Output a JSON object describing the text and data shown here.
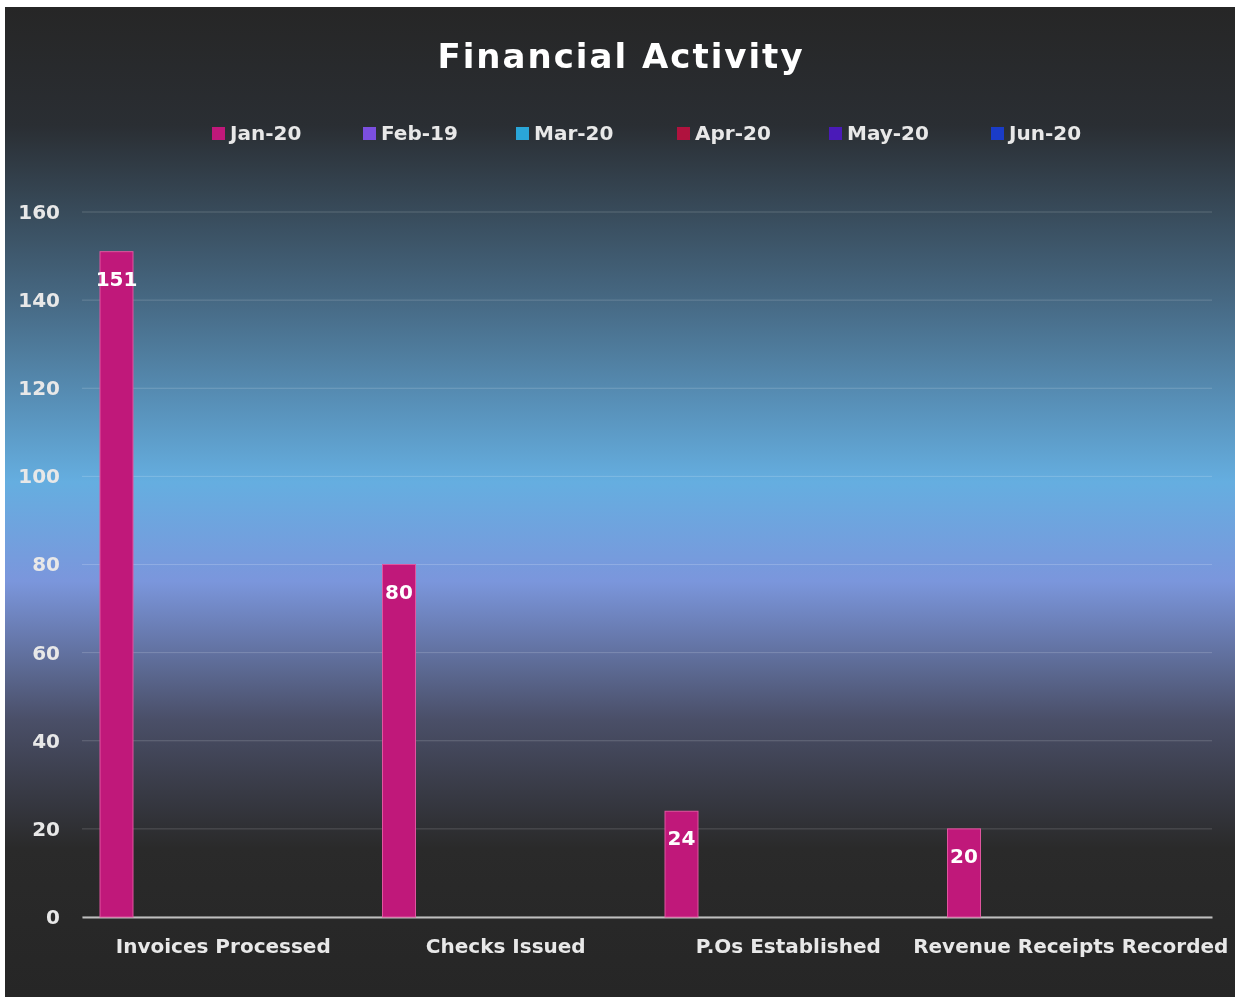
{
  "chart_data": {
    "type": "bar",
    "title": "Financial Activity",
    "categories": [
      "Invoices Processed",
      "Checks Issued",
      "P.Os Established",
      "Revenue Receipts Recorded"
    ],
    "series": [
      {
        "name": "Jan-20",
        "color": "#c0187a",
        "values": [
          151,
          80,
          24,
          20
        ]
      },
      {
        "name": "Feb-19",
        "color": "#7b4fe0",
        "values": [
          null,
          null,
          null,
          null
        ]
      },
      {
        "name": "Mar-20",
        "color": "#2aa6d8",
        "values": [
          null,
          null,
          null,
          null
        ]
      },
      {
        "name": "Apr-20",
        "color": "#b0123e",
        "values": [
          null,
          null,
          null,
          null
        ]
      },
      {
        "name": "May-20",
        "color": "#4a1ab8",
        "values": [
          null,
          null,
          null,
          null
        ]
      },
      {
        "name": "Jun-20",
        "color": "#1a3cc8",
        "values": [
          null,
          null,
          null,
          null
        ]
      }
    ],
    "ylim": [
      0,
      160
    ],
    "yticks": [
      0,
      20,
      40,
      60,
      80,
      100,
      120,
      140,
      160
    ],
    "grid": "y",
    "legend": "top",
    "data_labels": true
  }
}
